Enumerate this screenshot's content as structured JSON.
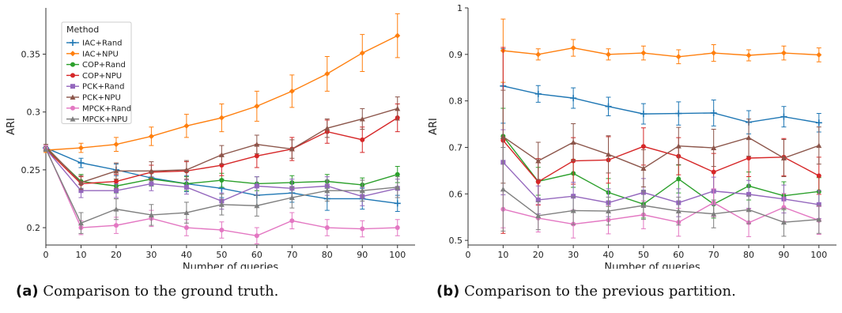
{
  "captions": [
    {
      "label": "(a)",
      "text": "Comparison to the ground truth."
    },
    {
      "label": "(b)",
      "text": "Comparison to the previous partition."
    }
  ],
  "chart_data": [
    {
      "type": "line",
      "title": "",
      "xlabel": "Number of queries",
      "ylabel": "ARI",
      "xlim": [
        0,
        105
      ],
      "ylim": [
        0.185,
        0.39
      ],
      "xticks": [
        0,
        10,
        20,
        30,
        40,
        50,
        60,
        70,
        80,
        90,
        100
      ],
      "yticks": [
        0.2,
        0.25,
        0.3,
        0.35
      ],
      "ytick_labels": [
        "0.2",
        "0.25",
        "0.3",
        "0.35"
      ],
      "legend": {
        "title": "Method",
        "position": "upper-left"
      },
      "x": [
        0,
        10,
        20,
        30,
        40,
        50,
        60,
        70,
        80,
        90,
        100
      ],
      "series": [
        {
          "name": "IAC+Rand",
          "color": "#1f77b4",
          "marker": "plus",
          "values": [
            0.269,
            0.256,
            0.25,
            0.243,
            0.238,
            0.234,
            0.228,
            0.23,
            0.225,
            0.225,
            0.221
          ],
          "err": [
            0.002,
            0.004,
            0.005,
            0.006,
            0.007,
            0.008,
            0.009,
            0.008,
            0.01,
            0.009,
            0.007
          ]
        },
        {
          "name": "IAC+NPU",
          "color": "#ff7f0e",
          "marker": "diamond",
          "values": [
            0.267,
            0.269,
            0.272,
            0.279,
            0.288,
            0.295,
            0.305,
            0.318,
            0.333,
            0.351,
            0.366
          ],
          "err": [
            0.002,
            0.004,
            0.006,
            0.008,
            0.01,
            0.012,
            0.013,
            0.014,
            0.015,
            0.016,
            0.019
          ]
        },
        {
          "name": "COP+Rand",
          "color": "#2ca02c",
          "marker": "circle",
          "values": [
            0.269,
            0.24,
            0.236,
            0.242,
            0.238,
            0.241,
            0.238,
            0.239,
            0.24,
            0.237,
            0.246
          ],
          "err": [
            0.002,
            0.006,
            0.006,
            0.006,
            0.006,
            0.006,
            0.006,
            0.006,
            0.006,
            0.006,
            0.007
          ]
        },
        {
          "name": "COP+NPU",
          "color": "#d62728",
          "marker": "circle",
          "values": [
            0.268,
            0.238,
            0.24,
            0.248,
            0.249,
            0.254,
            0.262,
            0.268,
            0.283,
            0.276,
            0.295
          ],
          "err": [
            0.002,
            0.006,
            0.006,
            0.006,
            0.008,
            0.009,
            0.01,
            0.01,
            0.01,
            0.011,
            0.012
          ]
        },
        {
          "name": "PCK+Rand",
          "color": "#9467bd",
          "marker": "square",
          "values": [
            0.268,
            0.232,
            0.232,
            0.238,
            0.235,
            0.223,
            0.236,
            0.234,
            0.236,
            0.227,
            0.234
          ],
          "err": [
            0.002,
            0.006,
            0.006,
            0.006,
            0.006,
            0.007,
            0.008,
            0.008,
            0.008,
            0.008,
            0.008
          ]
        },
        {
          "name": "PCK+NPU",
          "color": "#8c564b",
          "marker": "triangle",
          "values": [
            0.27,
            0.239,
            0.249,
            0.249,
            0.25,
            0.263,
            0.272,
            0.268,
            0.286,
            0.294,
            0.303
          ],
          "err": [
            0.002,
            0.006,
            0.007,
            0.008,
            0.008,
            0.008,
            0.008,
            0.008,
            0.008,
            0.009,
            0.01
          ]
        },
        {
          "name": "MPCK+Rand",
          "color": "#e377c2",
          "marker": "circle",
          "values": [
            0.269,
            0.2,
            0.202,
            0.208,
            0.2,
            0.198,
            0.193,
            0.206,
            0.2,
            0.199,
            0.2
          ],
          "err": [
            0.002,
            0.006,
            0.007,
            0.007,
            0.007,
            0.007,
            0.007,
            0.007,
            0.007,
            0.007,
            0.007
          ]
        },
        {
          "name": "MPCK+NPU",
          "color": "#7f7f7f",
          "marker": "triangle",
          "values": [
            0.268,
            0.204,
            0.216,
            0.211,
            0.213,
            0.22,
            0.219,
            0.226,
            0.232,
            0.232,
            0.235
          ],
          "err": [
            0.002,
            0.009,
            0.009,
            0.009,
            0.009,
            0.009,
            0.009,
            0.009,
            0.009,
            0.009,
            0.009
          ]
        }
      ]
    },
    {
      "type": "line",
      "title": "",
      "xlabel": "Number of queries",
      "ylabel": "ARI",
      "xlim": [
        0,
        105
      ],
      "ylim": [
        0.49,
        1.0
      ],
      "xticks": [
        0,
        10,
        20,
        30,
        40,
        50,
        60,
        70,
        80,
        90,
        100
      ],
      "yticks": [
        0.5,
        0.6,
        0.7,
        0.8,
        0.9,
        1.0
      ],
      "ytick_labels": [
        "0.5",
        "0.6",
        "0.7",
        "0.8",
        "0.9",
        "1"
      ],
      "x": [
        10,
        20,
        30,
        40,
        50,
        60,
        70,
        80,
        90,
        100
      ],
      "series": [
        {
          "name": "IAC+Rand",
          "color": "#1f77b4",
          "marker": "plus",
          "values": [
            0.832,
            0.815,
            0.806,
            0.788,
            0.772,
            0.773,
            0.774,
            0.754,
            0.766,
            0.753
          ],
          "err": [
            0.08,
            0.018,
            0.022,
            0.02,
            0.022,
            0.025,
            0.028,
            0.025,
            0.022,
            0.02
          ]
        },
        {
          "name": "IAC+NPU",
          "color": "#ff7f0e",
          "marker": "diamond",
          "values": [
            0.908,
            0.9,
            0.914,
            0.9,
            0.903,
            0.895,
            0.903,
            0.898,
            0.903,
            0.899
          ],
          "err": [
            0.068,
            0.012,
            0.018,
            0.012,
            0.015,
            0.015,
            0.018,
            0.012,
            0.015,
            0.015
          ]
        },
        {
          "name": "COP+Rand",
          "color": "#2ca02c",
          "marker": "circle",
          "values": [
            0.724,
            0.627,
            0.644,
            0.603,
            0.578,
            0.632,
            0.578,
            0.617,
            0.596,
            0.605
          ],
          "err": [
            0.06,
            0.03,
            0.03,
            0.03,
            0.03,
            0.03,
            0.03,
            0.03,
            0.03,
            0.03
          ]
        },
        {
          "name": "COP+NPU",
          "color": "#d62728",
          "marker": "circle",
          "values": [
            0.715,
            0.626,
            0.671,
            0.673,
            0.702,
            0.681,
            0.647,
            0.677,
            0.679,
            0.639
          ],
          "err": [
            0.2,
            0.05,
            0.05,
            0.05,
            0.04,
            0.04,
            0.04,
            0.04,
            0.04,
            0.04
          ]
        },
        {
          "name": "PCK+Rand",
          "color": "#9467bd",
          "marker": "square",
          "values": [
            0.668,
            0.587,
            0.595,
            0.581,
            0.603,
            0.581,
            0.606,
            0.599,
            0.589,
            0.577
          ],
          "err": [
            0.07,
            0.03,
            0.03,
            0.03,
            0.03,
            0.03,
            0.03,
            0.03,
            0.03,
            0.03
          ]
        },
        {
          "name": "PCK+NPU",
          "color": "#8c564b",
          "marker": "triangle",
          "values": [
            0.723,
            0.671,
            0.711,
            0.685,
            0.655,
            0.703,
            0.699,
            0.721,
            0.677,
            0.704
          ],
          "err": [
            0.1,
            0.04,
            0.04,
            0.04,
            0.04,
            0.04,
            0.04,
            0.04,
            0.04,
            0.04
          ]
        },
        {
          "name": "MPCK+Rand",
          "color": "#e377c2",
          "marker": "circle",
          "values": [
            0.567,
            0.548,
            0.535,
            0.544,
            0.555,
            0.539,
            0.581,
            0.538,
            0.571,
            0.543
          ],
          "err": [
            0.04,
            0.03,
            0.03,
            0.03,
            0.03,
            0.03,
            0.03,
            0.03,
            0.03,
            0.03
          ]
        },
        {
          "name": "MPCK+NPU",
          "color": "#7f7f7f",
          "marker": "triangle",
          "values": [
            0.61,
            0.553,
            0.564,
            0.563,
            0.575,
            0.563,
            0.557,
            0.566,
            0.539,
            0.545
          ],
          "err": [
            0.09,
            0.03,
            0.03,
            0.03,
            0.03,
            0.03,
            0.03,
            0.03,
            0.03,
            0.03
          ]
        }
      ]
    }
  ]
}
